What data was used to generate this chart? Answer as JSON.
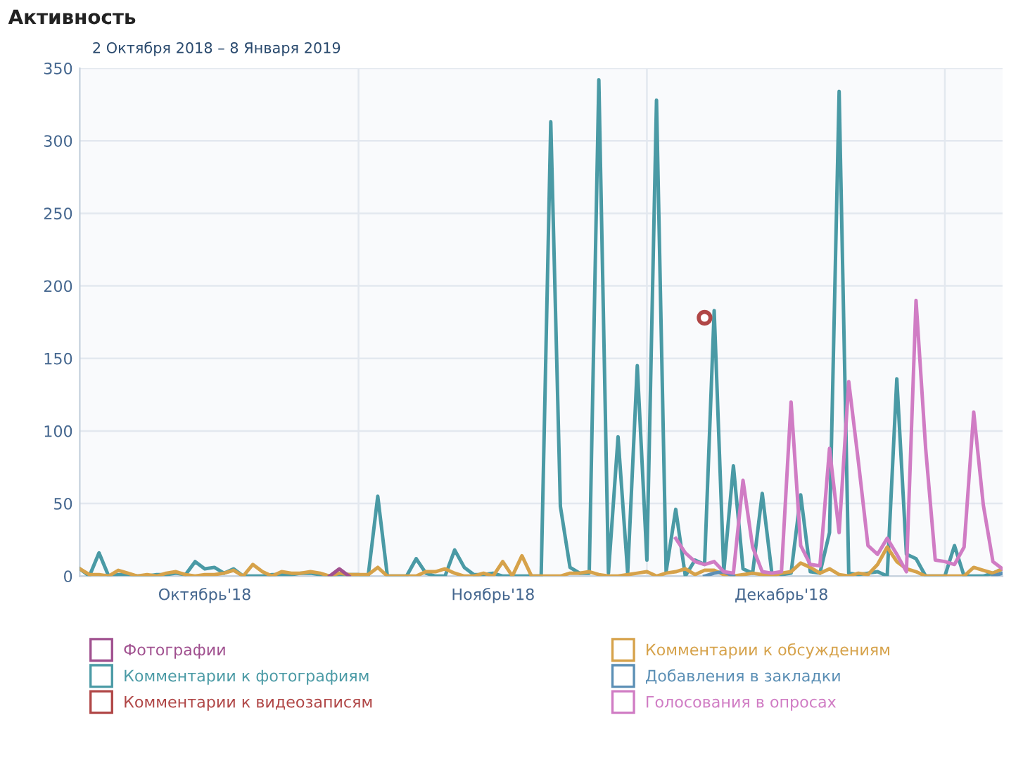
{
  "chart_data": {
    "type": "line",
    "title": "Активность",
    "subtitle": "2 Октября 2018 – 8 Января 2019",
    "x": [
      "2018-10-03",
      "2018-10-04",
      "2018-10-05",
      "2018-10-06",
      "2018-10-07",
      "2018-10-08",
      "2018-10-09",
      "2018-10-10",
      "2018-10-11",
      "2018-10-12",
      "2018-10-13",
      "2018-10-14",
      "2018-10-15",
      "2018-10-16",
      "2018-10-17",
      "2018-10-18",
      "2018-10-19",
      "2018-10-20",
      "2018-10-21",
      "2018-10-22",
      "2018-10-23",
      "2018-10-24",
      "2018-10-25",
      "2018-10-26",
      "2018-10-27",
      "2018-10-28",
      "2018-10-29",
      "2018-10-30",
      "2018-10-31",
      "2018-11-01",
      "2018-11-02",
      "2018-11-03",
      "2018-11-04",
      "2018-11-05",
      "2018-11-06",
      "2018-11-07",
      "2018-11-08",
      "2018-11-09",
      "2018-11-10",
      "2018-11-11",
      "2018-11-12",
      "2018-11-13",
      "2018-11-14",
      "2018-11-15",
      "2018-11-16",
      "2018-11-17",
      "2018-11-18",
      "2018-11-19",
      "2018-11-20",
      "2018-11-21",
      "2018-11-22",
      "2018-11-23",
      "2018-11-24",
      "2018-11-25",
      "2018-11-26",
      "2018-11-27",
      "2018-11-28",
      "2018-11-29",
      "2018-11-30",
      "2018-12-01",
      "2018-12-02",
      "2018-12-03",
      "2018-12-04",
      "2018-12-05",
      "2018-12-06",
      "2018-12-07",
      "2018-12-08",
      "2018-12-09",
      "2018-12-10",
      "2018-12-11",
      "2018-12-12",
      "2018-12-13",
      "2018-12-14",
      "2018-12-15",
      "2018-12-16",
      "2018-12-17",
      "2018-12-18",
      "2018-12-19",
      "2018-12-20",
      "2018-12-21",
      "2018-12-22",
      "2018-12-23",
      "2018-12-24",
      "2018-12-25",
      "2018-12-26",
      "2018-12-27",
      "2018-12-28",
      "2018-12-29",
      "2018-12-30",
      "2018-12-31",
      "2019-01-01",
      "2019-01-02",
      "2019-01-03",
      "2019-01-04",
      "2019-01-05",
      "2019-01-06",
      "2019-01-07"
    ],
    "series": [
      {
        "name": "Фотографии",
        "color": "#a0508f",
        "values": [
          null,
          null,
          null,
          null,
          null,
          null,
          null,
          null,
          null,
          null,
          null,
          null,
          null,
          null,
          null,
          null,
          null,
          null,
          null,
          null,
          null,
          null,
          null,
          null,
          null,
          null,
          0,
          5,
          0,
          null,
          null,
          null,
          null,
          null,
          null,
          null,
          null,
          null,
          null,
          null,
          null,
          null,
          null,
          null,
          null,
          null,
          null,
          null,
          null,
          null,
          null,
          null,
          null,
          null,
          null,
          null,
          null,
          null,
          null,
          null,
          null,
          null,
          null,
          null,
          null,
          null,
          null,
          null,
          null,
          null,
          null,
          null,
          null,
          null,
          null,
          null,
          null,
          null,
          null,
          null,
          null,
          null,
          null,
          null,
          null,
          null,
          null,
          null,
          null,
          null,
          null,
          null,
          null,
          null,
          null,
          null,
          null
        ]
      },
      {
        "name": "Комментарии к фотографиям",
        "color": "#4a9aa5",
        "values": [
          5,
          0,
          16,
          0,
          1,
          1,
          0,
          0,
          1,
          1,
          2,
          1,
          10,
          5,
          6,
          2,
          5,
          0,
          0,
          0,
          1,
          1,
          1,
          2,
          2,
          1,
          0,
          1,
          1,
          1,
          0,
          55,
          0,
          0,
          0,
          12,
          2,
          0,
          0,
          18,
          6,
          1,
          1,
          2,
          0,
          0,
          0,
          0,
          0,
          313,
          48,
          6,
          2,
          2,
          342,
          2,
          96,
          2,
          145,
          11,
          328,
          3,
          46,
          0,
          11,
          8,
          183,
          3,
          76,
          5,
          2,
          57,
          2,
          1,
          2,
          56,
          3,
          2,
          30,
          334,
          2,
          1,
          2,
          3,
          0,
          136,
          15,
          12,
          0,
          0,
          0,
          21,
          0,
          0,
          0,
          2,
          5
        ]
      },
      {
        "name": "Комментарии к видеозаписям",
        "color": "#b04646",
        "marker": "circle",
        "values": [
          null,
          null,
          null,
          null,
          null,
          null,
          null,
          null,
          null,
          null,
          null,
          null,
          null,
          null,
          null,
          null,
          null,
          null,
          null,
          null,
          null,
          null,
          null,
          null,
          null,
          null,
          null,
          null,
          null,
          null,
          null,
          null,
          null,
          null,
          null,
          null,
          null,
          null,
          null,
          null,
          null,
          null,
          null,
          null,
          null,
          null,
          null,
          null,
          null,
          null,
          null,
          null,
          null,
          null,
          null,
          null,
          null,
          null,
          null,
          null,
          null,
          null,
          null,
          null,
          null,
          178,
          null,
          null,
          null,
          null,
          null,
          null,
          null,
          null,
          null,
          null,
          null,
          null,
          null,
          null,
          null,
          null,
          null,
          null,
          null,
          null,
          null,
          null,
          null,
          null,
          null,
          null,
          null,
          null,
          null,
          null,
          null
        ]
      },
      {
        "name": "Комментарии к обсуждениям",
        "color": "#d6a24a",
        "values": [
          5,
          1,
          1,
          0,
          4,
          2,
          0,
          1,
          0,
          2,
          3,
          1,
          0,
          1,
          1,
          2,
          4,
          0,
          8,
          3,
          0,
          3,
          2,
          2,
          3,
          2,
          0,
          2,
          1,
          1,
          1,
          6,
          0,
          0,
          0,
          0,
          3,
          3,
          5,
          2,
          0,
          0,
          2,
          0,
          10,
          0,
          14,
          0,
          0,
          0,
          0,
          2,
          2,
          3,
          1,
          0,
          0,
          1,
          2,
          3,
          0,
          2,
          3,
          5,
          1,
          4,
          4,
          1,
          0,
          1,
          2,
          1,
          0,
          2,
          3,
          9,
          6,
          2,
          5,
          1,
          0,
          2,
          1,
          8,
          20,
          10,
          5,
          3,
          0,
          0,
          0,
          0,
          0,
          6,
          4,
          2,
          5
        ]
      },
      {
        "name": "Добавления в закладки",
        "color": "#5b8fb5",
        "values": [
          null,
          null,
          null,
          null,
          null,
          null,
          null,
          null,
          null,
          null,
          null,
          null,
          null,
          null,
          null,
          null,
          null,
          null,
          null,
          null,
          null,
          null,
          null,
          null,
          null,
          null,
          null,
          null,
          null,
          null,
          null,
          null,
          null,
          null,
          null,
          null,
          null,
          null,
          null,
          null,
          null,
          null,
          null,
          null,
          null,
          null,
          null,
          null,
          null,
          null,
          null,
          null,
          null,
          null,
          null,
          null,
          null,
          null,
          null,
          null,
          null,
          null,
          null,
          null,
          null,
          0,
          2,
          3,
          0,
          null,
          null,
          null,
          null,
          null,
          null,
          null,
          null,
          null,
          null,
          null,
          null,
          null,
          null,
          null,
          null,
          null,
          null,
          null,
          null,
          null,
          null,
          null,
          null,
          null,
          null,
          0,
          2
        ]
      },
      {
        "name": "Голосования в опросах",
        "color": "#d07cc4",
        "values": [
          null,
          null,
          null,
          null,
          null,
          null,
          null,
          null,
          null,
          null,
          null,
          null,
          null,
          null,
          null,
          null,
          null,
          null,
          null,
          null,
          null,
          null,
          null,
          null,
          null,
          null,
          null,
          null,
          null,
          null,
          null,
          null,
          null,
          null,
          null,
          null,
          null,
          null,
          null,
          null,
          null,
          null,
          null,
          null,
          null,
          null,
          null,
          null,
          null,
          null,
          null,
          null,
          null,
          null,
          null,
          null,
          null,
          null,
          null,
          null,
          null,
          null,
          26,
          16,
          10,
          8,
          10,
          3,
          2,
          66,
          20,
          3,
          2,
          3,
          120,
          21,
          8,
          7,
          88,
          30,
          134,
          79,
          21,
          15,
          26,
          15,
          3,
          190,
          88,
          11,
          10,
          8,
          20,
          113,
          49,
          10,
          5
        ]
      }
    ],
    "xlim": [
      "2018-10-03",
      "2019-01-07"
    ],
    "xticks": [
      {
        "value": "2018-10-16",
        "label": "Октябрь'18"
      },
      {
        "value": "2018-11-01",
        "label": null
      },
      {
        "value": "2018-11-15",
        "label": "Ноябрь'18"
      },
      {
        "value": "2018-12-01",
        "label": null
      },
      {
        "value": "2018-12-15",
        "label": "Декабрь'18"
      },
      {
        "value": "2019-01-01",
        "label": null
      }
    ],
    "ylim": [
      0,
      350
    ],
    "yticks": [
      0,
      50,
      100,
      150,
      200,
      250,
      300,
      350
    ],
    "grid": true,
    "legend": "bottom"
  }
}
